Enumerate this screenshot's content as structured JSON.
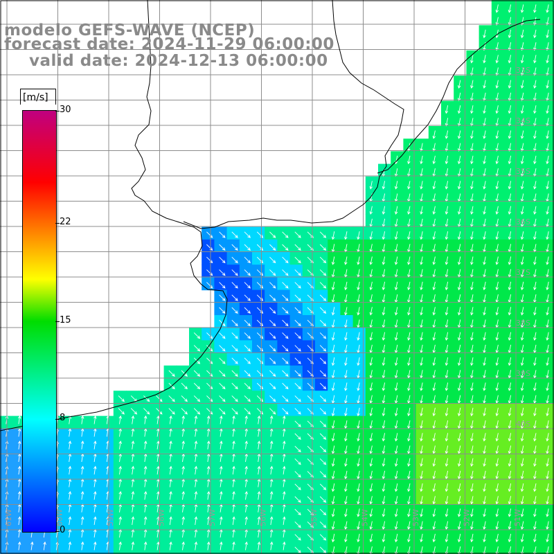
{
  "title": {
    "line1": "modelo GEFS-WAVE (NCEP)",
    "line2": "forecast date: 2024-11-29 06:00:00",
    "line3": "valid date: 2024-12-13 06:00:00"
  },
  "colorbar": {
    "unit": "[m/s]",
    "ticks": [
      {
        "label": "30",
        "value": 30
      },
      {
        "label": "22",
        "value": 22
      },
      {
        "label": "15",
        "value": 15
      },
      {
        "label": "8",
        "value": 8
      },
      {
        "label": "0",
        "value": 0
      }
    ],
    "min": 0,
    "max": 30,
    "colors": [
      "#0000ff",
      "#00ffff",
      "#00dd00",
      "#ffff00",
      "#ff7000",
      "#ff0000",
      "#c00080"
    ]
  },
  "map": {
    "lat_labels": [
      "33S",
      "34S",
      "35S",
      "36S",
      "37S",
      "38S",
      "39S",
      "40S"
    ],
    "lon_labels": [
      "61W",
      "60W",
      "59W",
      "58W",
      "57W",
      "56W",
      "55W",
      "54W",
      "53W",
      "52W",
      "51W"
    ],
    "land_color": "#ffffff",
    "grid_color": "#8c8c8c",
    "arrow_color": "#ffffff"
  }
}
